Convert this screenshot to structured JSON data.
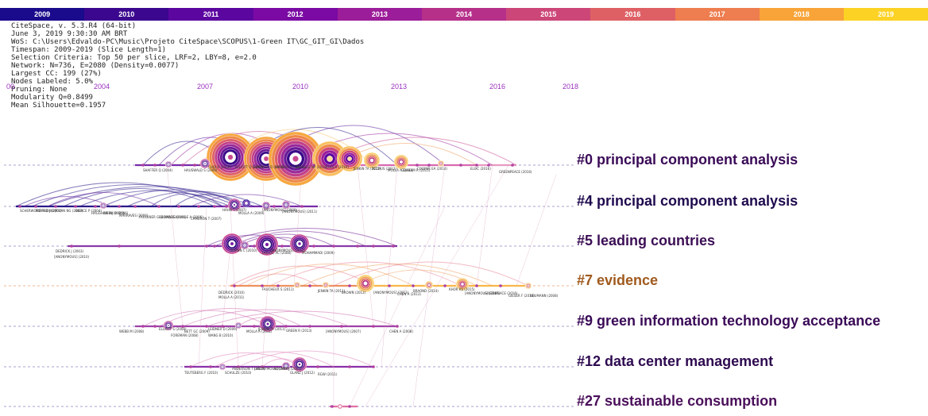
{
  "year_bar": [
    {
      "label": "2009",
      "color": "#1a0a8c"
    },
    {
      "label": "2010",
      "color": "#3b078f"
    },
    {
      "label": "2011",
      "color": "#5c06a0"
    },
    {
      "label": "2012",
      "color": "#7a0aa3"
    },
    {
      "label": "2013",
      "color": "#9c1d9a"
    },
    {
      "label": "2014",
      "color": "#b6308a"
    },
    {
      "label": "2015",
      "color": "#cc4778"
    },
    {
      "label": "2016",
      "color": "#de6065"
    },
    {
      "label": "2017",
      "color": "#ee7d4f"
    },
    {
      "label": "2018",
      "color": "#f8a439"
    },
    {
      "label": "2019",
      "color": "#fcd225"
    }
  ],
  "info_lines": [
    "CiteSpace, v. 5.3.R4 (64-bit)",
    "June 3, 2019 9:30:30 AM BRT",
    "WoS: C:\\Users\\Edvaldo-PC\\Music\\Projeto CiteSpace\\SCOPUS\\1-Green IT\\GC_GIT_GI\\Dados",
    "Timespan: 2009-2019 (Slice Length=1)",
    "Selection Criteria: Top 50 per slice, LRF=2, LBY=8, e=2.0",
    "Network: N=736, E=2080 (Density=0.0077)",
    "Largest CC: 199 (27%)",
    "Nodes Labeled: 5.0%",
    "Pruning: None",
    "Modularity Q=0.8499",
    "Mean Silhouette=0.1957"
  ],
  "timeline_ticks": [
    {
      "label": "00"
    },
    {
      "label": "2004"
    },
    {
      "label": "2007"
    },
    {
      "label": "2010"
    },
    {
      "label": "2013"
    },
    {
      "label": "2016"
    },
    {
      "label": "2018"
    }
  ],
  "clusters": [
    {
      "label": "#0 principal component analysis",
      "color": "#3a0a57"
    },
    {
      "label": "#4 principal component analysis",
      "color": "#1f0a4e"
    },
    {
      "label": "#5 leading countries",
      "color": "#3c0f55"
    },
    {
      "label": "#7 evidence",
      "color": "#a05a1e"
    },
    {
      "label": "#9 green information technology acceptance",
      "color": "#3a0a57"
    },
    {
      "label": "#12 data center management",
      "color": "#2e0a50"
    },
    {
      "label": "#27 sustainable consumption",
      "color": "#4a0f5a"
    }
  ],
  "node_labels": [
    "SHAFFER Q (2004)",
    "HAUSWALD S (2009)",
    "CHOI R (2009)",
    "ELLIOTT Q (2006)",
    "SIMONSPE D (2008)",
    "WATSON RT (2010)",
    "MELVILLE NP (2010)",
    "CHOI R (2010)",
    "JENKIN TA (2011)",
    "SCOPUS (2012)",
    "MOLLA A (2013)",
    "GRAHAM R (2015)",
    "COOPER EA (2014)",
    "ELIXC (2016)",
    "GREENPEACE (2016)",
    "SCHERWOOD H (2002)",
    "PORTER J (2003)",
    "RIVAN NG (2003)",
    "DIERCE P (2004)",
    "HAGGHAM MJ (2005)",
    "WEEN M (2006)",
    "MARRAVES (2006)",
    "FAULKNER G (2006)",
    "BROWN G (2006)",
    "DEAUVILLE A (2006)",
    "CAMERON T (2007)",
    "HAHN T (2007)",
    "MOLLA A (2009)",
    "[ANONYMOUS] (2009)",
    "[ANONYMOUS] (2011)",
    "DEDRICK J (2003)",
    "[ANONYMOUS] (2010)",
    "[ANONYMOUS] (2012)",
    "BORNN C (2010)",
    "DOLCIC AC (2008)",
    "MOHAMMADI (2009)",
    "DEDRICK (2010)",
    "MOLLA A (2011)",
    "FAUCHEUX S (2011)",
    "JENKIN TA (2011)",
    "BROWN (2012)",
    "[ANONYMOUS] (2013)",
    "CHEN A (2013)",
    "BRAOND (2014)",
    "KHOR KS (2015)",
    "[ANONYMOUS] (2016)",
    "GREENPEACE (2016)",
    "GIESER F (2017)",
    "NEUMANN (2008)",
    "WEBB M (2008)",
    "ELLIOTT S (2008)",
    "FOREMAN (2008)",
    "BETT GC (2009)",
    "LEIDNER D (2009)",
    "WANG B (2010)",
    "MOLLA A (2011)",
    "JENKIN TA (2011)",
    "GREEN R (2013)",
    "[ANONYMOUS] (2007)",
    "CHEN A (2008)",
    "TEUTEBERG F (2010)",
    "SCHULZE (2010)",
    "ANDERSON T (2010)",
    "[ANONYMOUS] (2010)",
    "KOOMEY J (2011)",
    "GLANZ J (2012)",
    "RGW (2011)"
  ]
}
